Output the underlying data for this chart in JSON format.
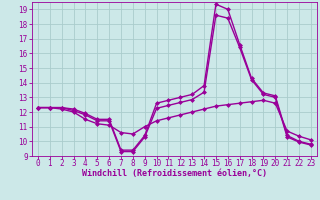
{
  "xlabel": "Windchill (Refroidissement éolien,°C)",
  "bg_color": "#cce8e8",
  "grid_color": "#aacccc",
  "line_color": "#990099",
  "x_ticks": [
    0,
    1,
    2,
    3,
    4,
    5,
    6,
    7,
    8,
    9,
    10,
    11,
    12,
    13,
    14,
    15,
    16,
    17,
    18,
    19,
    20,
    21,
    22,
    23
  ],
  "y_ticks": [
    9,
    10,
    11,
    12,
    13,
    14,
    15,
    16,
    17,
    18,
    19
  ],
  "ylim": [
    9.0,
    19.5
  ],
  "xlim": [
    -0.5,
    23.5
  ],
  "line1_x": [
    0,
    1,
    2,
    3,
    4,
    5,
    6,
    7,
    8,
    9,
    10,
    11,
    12,
    13,
    14,
    15,
    16,
    17,
    18,
    19,
    20,
    21,
    22,
    23
  ],
  "line1_y": [
    12.3,
    12.3,
    12.3,
    12.2,
    11.9,
    11.5,
    11.5,
    9.4,
    9.4,
    10.4,
    12.6,
    12.8,
    13.0,
    13.2,
    13.8,
    19.35,
    19.0,
    16.6,
    14.3,
    13.3,
    13.1,
    10.4,
    10.0,
    9.8
  ],
  "line2_x": [
    0,
    1,
    2,
    3,
    4,
    5,
    6,
    7,
    8,
    9,
    10,
    11,
    12,
    13,
    14,
    15,
    16,
    17,
    18,
    19,
    20,
    21,
    22,
    23
  ],
  "line2_y": [
    12.3,
    12.3,
    12.3,
    12.1,
    11.8,
    11.4,
    11.4,
    9.3,
    9.3,
    10.3,
    12.25,
    12.45,
    12.65,
    12.85,
    13.35,
    18.6,
    18.4,
    16.4,
    14.2,
    13.2,
    13.0,
    10.3,
    9.95,
    9.75
  ],
  "line3_x": [
    0,
    1,
    2,
    3,
    4,
    5,
    6,
    7,
    8,
    9,
    10,
    11,
    12,
    13,
    14,
    15,
    16,
    17,
    18,
    19,
    20,
    21,
    22,
    23
  ],
  "line3_y": [
    12.3,
    12.3,
    12.2,
    12.0,
    11.5,
    11.2,
    11.1,
    10.6,
    10.5,
    11.0,
    11.4,
    11.6,
    11.8,
    12.0,
    12.2,
    12.4,
    12.5,
    12.6,
    12.7,
    12.8,
    12.6,
    10.7,
    10.35,
    10.1
  ],
  "markersize": 2.5,
  "linewidth": 1.0,
  "tick_fontsize": 5.5,
  "label_fontsize": 6.0
}
